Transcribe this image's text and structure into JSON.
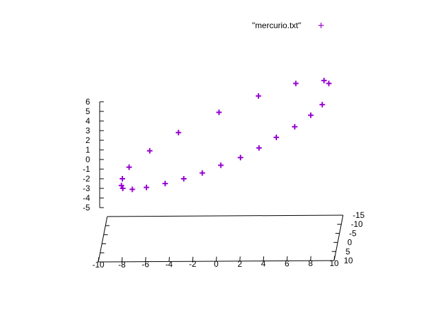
{
  "chart_data": {
    "type": "scatter",
    "dimension": "3d",
    "series": [
      {
        "name": "\"mercurio.txt\"",
        "marker": "plus",
        "color": "#9400d3",
        "x": [
          -8.2,
          -7.6,
          -5.8,
          -3.3,
          0.2,
          3.6,
          6.8,
          9.2,
          9.6,
          9.0,
          8.0,
          6.6,
          5.0,
          3.5,
          1.9,
          0.2,
          -1.4,
          -3.0,
          -4.6,
          -6.2,
          -7.4,
          -8.2,
          -8.3
        ],
        "y": [
          -1.8,
          -0.8,
          0.9,
          2.9,
          5.0,
          6.7,
          7.7,
          7.9,
          7.6,
          6.5,
          5.5,
          4.3,
          3.0,
          1.9,
          0.9,
          -0.2,
          -1.2,
          -2.1,
          -2.8,
          -3.1,
          -3.2,
          -3.0,
          -2.4
        ],
        "z": [
          -2.0,
          -0.8,
          0.9,
          2.8,
          4.9,
          6.6,
          7.9,
          8.2,
          7.9,
          5.7,
          4.6,
          3.4,
          2.3,
          1.2,
          0.2,
          -0.6,
          -1.4,
          -2.0,
          -2.5,
          -2.9,
          -3.1,
          -3.0,
          -2.7
        ]
      }
    ],
    "xaxis": {
      "ticks": [
        "-10",
        "-8",
        "-6",
        "-4",
        "-2",
        "0",
        "2",
        "4",
        "6",
        "8",
        "10"
      ],
      "range": [
        -10,
        10
      ]
    },
    "yaxis": {
      "ticks": [
        "-15",
        "-10",
        "-5",
        "0",
        "5",
        "10"
      ],
      "range": [
        10,
        -15
      ]
    },
    "zaxis": {
      "ticks": [
        "6",
        "5",
        "4",
        "3",
        "2",
        "1",
        "0",
        "-1",
        "-2",
        "-3",
        "-4",
        "-5"
      ],
      "range": [
        -5,
        6
      ]
    },
    "legend": {
      "position": "top-right",
      "label": "\"mercurio.txt\""
    },
    "grid": false,
    "axis_color": "#000000"
  }
}
